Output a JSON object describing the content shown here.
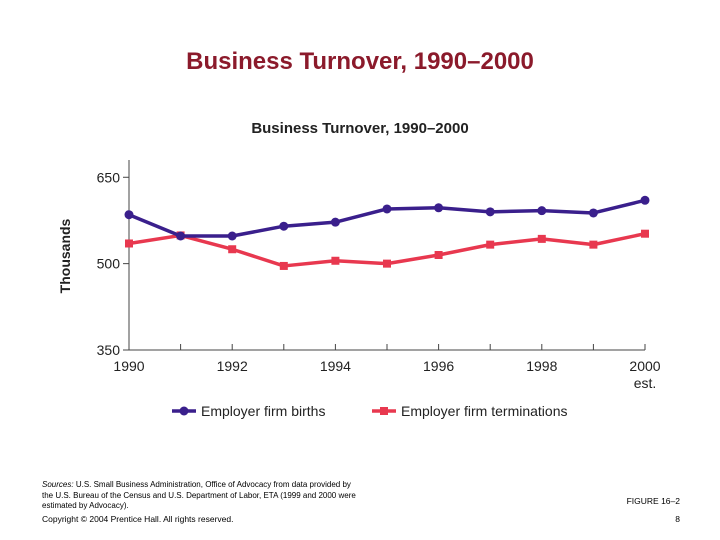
{
  "slide": {
    "title": "Business Turnover, 1990–2000",
    "sources_label": "Sources:",
    "sources_text": "U.S. Small Business Administration, Office of Advocacy from data provided by the U.S. Bureau of the Census and U.S. Department of Labor, ETA (1999 and 2000 were estimated by Advocacy).",
    "copyright": "Copyright © 2004 Prentice Hall. All rights reserved.",
    "figure_label": "FIGURE 16–2",
    "page_number": "8"
  },
  "chart_data": {
    "type": "line",
    "title": "Business Turnover, 1990–2000",
    "xlabel": "",
    "ylabel": "Thousands",
    "x": [
      1990,
      1991,
      1992,
      1993,
      1994,
      1995,
      1996,
      1997,
      1998,
      1999,
      2000
    ],
    "x_ticks": [
      1990,
      1992,
      1994,
      1996,
      1998,
      2000
    ],
    "x_tick_labels": [
      "1990",
      "1992",
      "1994",
      "1996",
      "1998",
      "2000"
    ],
    "x_tick_sublabel": {
      "2000": "est."
    },
    "y_ticks": [
      350,
      500,
      650
    ],
    "ylim": [
      350,
      680
    ],
    "xlim": [
      1990,
      2000
    ],
    "grid": false,
    "legend_position": "bottom",
    "series": [
      {
        "name": "Employer firm births",
        "color": "#3a1f8c",
        "marker": "circle",
        "values": [
          585,
          548,
          548,
          565,
          572,
          595,
          597,
          590,
          592,
          588,
          610
        ]
      },
      {
        "name": "Employer firm terminations",
        "color": "#e8384f",
        "marker": "square",
        "values": [
          535,
          549,
          525,
          496,
          505,
          500,
          515,
          533,
          543,
          533,
          552
        ]
      }
    ]
  }
}
